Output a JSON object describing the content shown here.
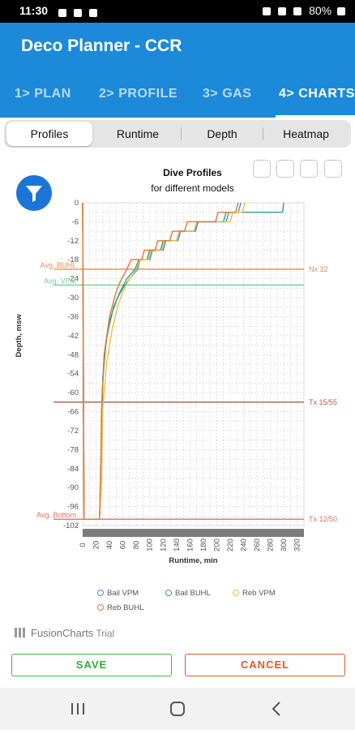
{
  "status": {
    "time": "11:30",
    "battery": "80%"
  },
  "app": {
    "title": "Deco Planner - CCR"
  },
  "tabs": [
    {
      "label": "1> PLAN"
    },
    {
      "label": "2> PROFILE"
    },
    {
      "label": "3> GAS"
    },
    {
      "label": "4> CHARTS"
    }
  ],
  "subtabs": [
    {
      "label": "Profiles"
    },
    {
      "label": "Runtime"
    },
    {
      "label": "Depth"
    },
    {
      "label": "Heatmap"
    }
  ],
  "chart_data": {
    "type": "line",
    "title": "Dive Profiles",
    "subtitle": "for different models",
    "xlabel": "Runtime, min",
    "ylabel": "Depth, msw",
    "xlim": [
      0,
      330
    ],
    "ylim": [
      -102,
      0
    ],
    "x_ticks": [
      0,
      20,
      40,
      60,
      80,
      100,
      120,
      140,
      160,
      180,
      200,
      220,
      240,
      260,
      280,
      300,
      320
    ],
    "y_ticks": [
      0,
      -6,
      -12,
      -18,
      -24,
      -30,
      -36,
      -42,
      -48,
      -54,
      -60,
      -66,
      -72,
      -78,
      -84,
      -90,
      -96,
      -102
    ],
    "grid": true,
    "legend_position": "bottom",
    "reference_lines": [
      {
        "orientation": "horizontal",
        "value": -21,
        "label": "Avg. BUHL",
        "side": "left",
        "color": "#ee8a4d"
      },
      {
        "orientation": "horizontal",
        "value": -21,
        "label": "Nx 32",
        "side": "right",
        "color": "#ee8a4d"
      },
      {
        "orientation": "horizontal",
        "value": -26,
        "label": "Avg. VPM",
        "side": "left",
        "color": "#6dcf9d"
      },
      {
        "orientation": "horizontal",
        "value": -63,
        "label": "Tx 15/55",
        "side": "right",
        "color": "#b2584f"
      },
      {
        "orientation": "horizontal",
        "value": -100,
        "label": "Avg. Bottom",
        "side": "left",
        "color": "#e06f68"
      },
      {
        "orientation": "horizontal",
        "value": -100,
        "label": "Tx 12/50",
        "side": "right",
        "color": "#e06f68"
      }
    ],
    "series": [
      {
        "name": "Bail VPM",
        "color": "#3d8fd6",
        "points": [
          [
            0,
            0
          ],
          [
            2,
            -100
          ],
          [
            25,
            -100
          ],
          [
            28,
            -87
          ],
          [
            29,
            -60
          ],
          [
            34,
            -45
          ],
          [
            42,
            -36
          ],
          [
            52,
            -30
          ],
          [
            60,
            -27
          ],
          [
            70,
            -24
          ],
          [
            82,
            -21
          ],
          [
            86,
            -18
          ],
          [
            100,
            -18
          ],
          [
            104,
            -15
          ],
          [
            120,
            -15
          ],
          [
            124,
            -12
          ],
          [
            142,
            -12
          ],
          [
            146,
            -9
          ],
          [
            168,
            -9
          ],
          [
            172,
            -6
          ],
          [
            214,
            -6
          ],
          [
            218,
            -3
          ],
          [
            232,
            -3
          ],
          [
            236,
            0
          ]
        ]
      },
      {
        "name": "Bail BUHL",
        "color": "#2ea28a",
        "points": [
          [
            0,
            0
          ],
          [
            2,
            -100
          ],
          [
            25,
            -100
          ],
          [
            28,
            -87
          ],
          [
            30,
            -55
          ],
          [
            36,
            -42
          ],
          [
            46,
            -33
          ],
          [
            56,
            -28
          ],
          [
            66,
            -24
          ],
          [
            78,
            -21
          ],
          [
            84,
            -18
          ],
          [
            96,
            -18
          ],
          [
            100,
            -15
          ],
          [
            116,
            -15
          ],
          [
            120,
            -12
          ],
          [
            140,
            -12
          ],
          [
            144,
            -9
          ],
          [
            168,
            -9
          ],
          [
            172,
            -6
          ],
          [
            210,
            -6
          ],
          [
            214,
            -3
          ],
          [
            298,
            -3
          ],
          [
            300,
            0
          ]
        ]
      },
      {
        "name": "Reb VPM",
        "color": "#e9c43b",
        "points": [
          [
            0,
            0
          ],
          [
            2,
            -100
          ],
          [
            25,
            -100
          ],
          [
            28,
            -87
          ],
          [
            30,
            -65
          ],
          [
            36,
            -50
          ],
          [
            44,
            -40
          ],
          [
            52,
            -33
          ],
          [
            60,
            -28
          ],
          [
            70,
            -24
          ],
          [
            80,
            -21
          ],
          [
            86,
            -18
          ],
          [
            98,
            -18
          ],
          [
            102,
            -15
          ],
          [
            118,
            -15
          ],
          [
            122,
            -12
          ],
          [
            140,
            -12
          ],
          [
            144,
            -9
          ],
          [
            166,
            -9
          ],
          [
            170,
            -6
          ],
          [
            220,
            -6
          ],
          [
            224,
            -3
          ],
          [
            238,
            -3
          ],
          [
            242,
            0
          ]
        ]
      },
      {
        "name": "Reb BUHL",
        "color": "#ea7436",
        "points": [
          [
            0,
            0
          ],
          [
            2,
            -100
          ],
          [
            25,
            -100
          ],
          [
            27,
            -82
          ],
          [
            28,
            -66
          ],
          [
            32,
            -48
          ],
          [
            40,
            -36
          ],
          [
            50,
            -28
          ],
          [
            58,
            -24
          ],
          [
            66,
            -21
          ],
          [
            72,
            -18
          ],
          [
            88,
            -18
          ],
          [
            92,
            -15
          ],
          [
            108,
            -15
          ],
          [
            112,
            -12
          ],
          [
            130,
            -12
          ],
          [
            134,
            -9
          ],
          [
            152,
            -9
          ],
          [
            156,
            -6
          ],
          [
            198,
            -6
          ],
          [
            202,
            -3
          ],
          [
            228,
            -3
          ],
          [
            232,
            0
          ]
        ]
      }
    ]
  },
  "credit": {
    "brand": "FusionCharts",
    "suffix": "Trial"
  },
  "actions": {
    "save": "SAVE",
    "cancel": "CANCEL"
  }
}
